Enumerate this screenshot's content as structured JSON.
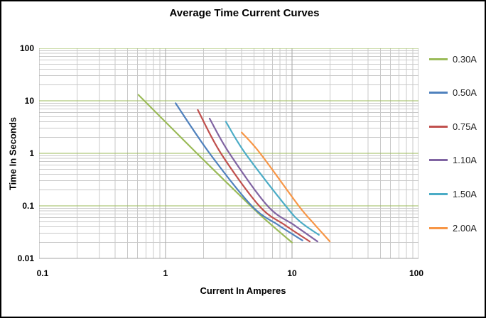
{
  "chart": {
    "title": "Average Time Current Curves",
    "x_axis_title": "Current In Amperes",
    "y_axis_title": "Time In Seconds"
  },
  "chart_data": {
    "type": "line",
    "title": "Average Time Current Curves",
    "xlabel": "Current In Amperes",
    "ylabel": "Time In Seconds",
    "x_scale": "log",
    "y_scale": "log",
    "xlim": [
      0.1,
      100
    ],
    "ylim": [
      0.01,
      100
    ],
    "x_tick_labels": [
      "0.1",
      "1",
      "10",
      "100"
    ],
    "x_tick_values": [
      0.1,
      1,
      10,
      100
    ],
    "y_tick_labels": [
      "100",
      "10",
      "1",
      "0.1",
      "0.01"
    ],
    "y_tick_values": [
      100,
      10,
      1,
      0.1,
      0.01
    ],
    "grid": {
      "minor": true,
      "minor_color": "#C9C9C9",
      "major_vertical_color": "#A6A6A6",
      "major_horizontal_color": "#9BBB59",
      "axis_line_color": "#A6A6A6"
    },
    "legend_position": "right",
    "series": [
      {
        "name": "0.30A",
        "color": "#9BBB59",
        "points": [
          [
            0.61,
            13
          ],
          [
            1.77,
            1
          ],
          [
            4.7,
            0.1
          ],
          [
            6.9,
            0.043
          ],
          [
            10,
            0.02
          ]
        ]
      },
      {
        "name": "0.50A",
        "color": "#4F81BD",
        "points": [
          [
            1.2,
            9
          ],
          [
            2.23,
            1
          ],
          [
            4.8,
            0.1
          ],
          [
            7.8,
            0.043
          ],
          [
            12.1,
            0.022
          ]
        ]
      },
      {
        "name": "0.75A",
        "color": "#C0504D",
        "points": [
          [
            1.8,
            6.7
          ],
          [
            2.74,
            1
          ],
          [
            5.5,
            0.1
          ],
          [
            8.8,
            0.043
          ],
          [
            13.8,
            0.021
          ]
        ]
      },
      {
        "name": "1.10A",
        "color": "#8064A2",
        "points": [
          [
            2.23,
            4.6
          ],
          [
            3.2,
            1
          ],
          [
            6.4,
            0.1
          ],
          [
            10.4,
            0.043
          ],
          [
            15.9,
            0.021
          ]
        ]
      },
      {
        "name": "1.50A",
        "color": "#4BACC6",
        "points": [
          [
            3.0,
            4.0
          ],
          [
            4.27,
            1
          ],
          [
            8.9,
            0.1
          ],
          [
            11.6,
            0.05
          ],
          [
            16.3,
            0.028
          ]
        ]
      },
      {
        "name": "2.00A",
        "color": "#F79646",
        "points": [
          [
            4.0,
            2.5
          ],
          [
            5.6,
            1
          ],
          [
            11.3,
            0.1
          ],
          [
            15.0,
            0.045
          ],
          [
            19.9,
            0.021
          ]
        ]
      }
    ]
  }
}
